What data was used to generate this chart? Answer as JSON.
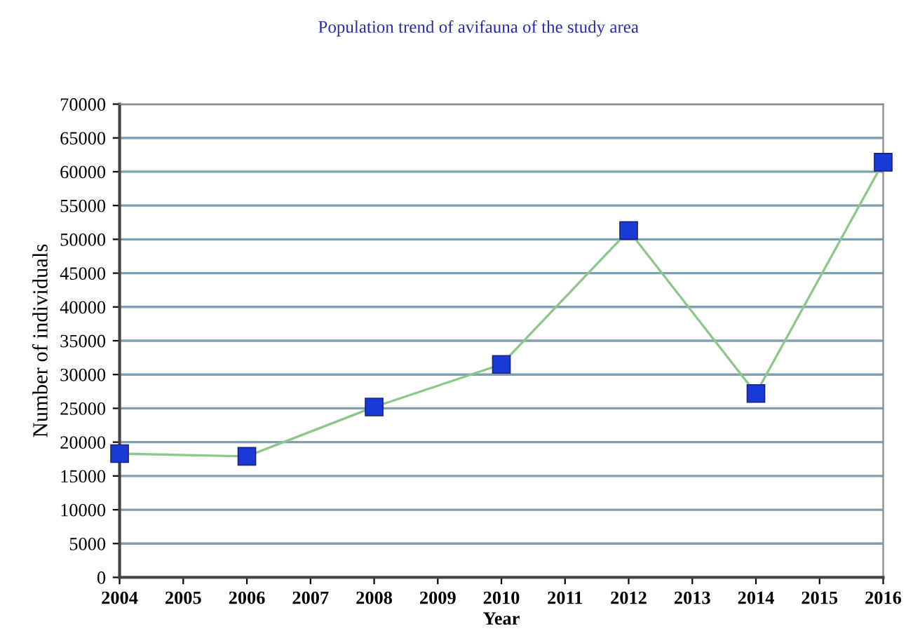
{
  "chart_data": {
    "type": "line",
    "title": "Population trend of avifauna of the study area",
    "xlabel": "Year",
    "ylabel": "Number of individuals",
    "x": [
      2004,
      2006,
      2008,
      2010,
      2012,
      2014,
      2016
    ],
    "series": [
      {
        "color": "#8cc88c",
        "values": [
          18300,
          17900,
          25200,
          31500,
          51300,
          27200,
          61400
        ]
      }
    ],
    "marker": "square",
    "xlim": [
      2004,
      2016
    ],
    "xticks": [
      2004,
      2005,
      2006,
      2007,
      2008,
      2009,
      2010,
      2011,
      2012,
      2013,
      2014,
      2015,
      2016
    ],
    "ylim": [
      0,
      70000
    ],
    "yticks": [
      0,
      5000,
      10000,
      15000,
      20000,
      25000,
      30000,
      35000,
      40000,
      45000,
      50000,
      55000,
      60000,
      65000,
      70000
    ],
    "grid": "y",
    "legend": false
  }
}
